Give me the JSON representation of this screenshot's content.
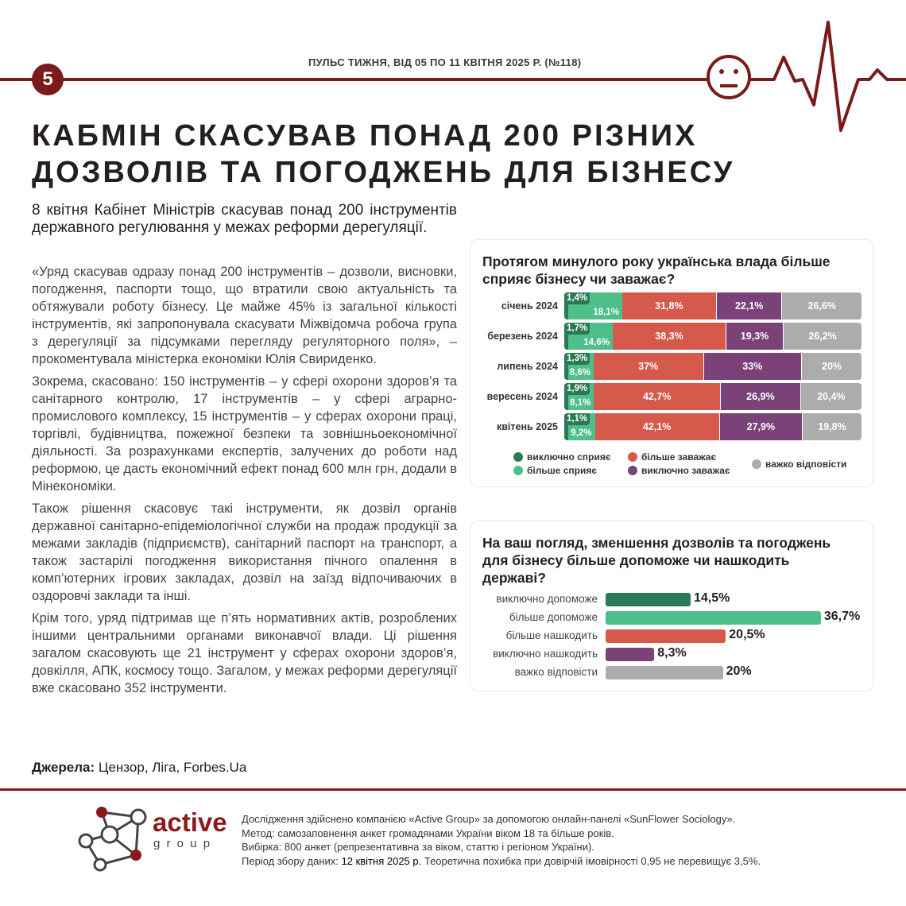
{
  "header": {
    "page_number": "5",
    "pulse_title": "ПУЛЬС ТИЖНЯ, ВІД 05 ПО 11 КВІТНЯ 2025 Р. (№118)",
    "mood_icon": "neutral-face-icon"
  },
  "article": {
    "title_line1": "КАБМІН СКАСУВАВ ПОНАД 200 РІЗНИХ",
    "title_line2": "ДОЗВОЛІВ ТА ПОГОДЖЕНЬ ДЛЯ БІЗНЕСУ",
    "lead": "8 квітня Кабінет Міністрів скасував понад 200 інструментів державного регулювання у межах реформи дерегуляції.",
    "paragraphs": [
      "«Уряд скасував одразу понад 200 інструментів – дозволи, висновки, погодження, паспорти тощо, що втратили свою актуальність та обтяжували роботу бізнесу. Це майже 45% із загальної кількості інструментів, які запропонувала скасувати Міжвідомча робоча група з дерегуляції за підсумками перегляду регуляторного поля», – прокоментувала міністерка економіки Юлія Свириденко.",
      "Зокрема, скасовано: 150 інструментів – у сфері охорони здоров’я та санітарного контролю, 17 інструментів – у сфері аграрно-промислового комплексу, 15 інструментів – у сферах охорони праці, торгівлі, будівництва, пожежної безпеки та зовнішньоекономічної діяльності. За розрахунками експертів, залучених до роботи над реформою, це дасть економічний ефект понад 600 млн грн, додали в Мінекономіки.",
      "Також рішення скасовує такі інструменти, як дозвіл органів державної санітарно-епідеміологічної служби на продаж продукції за межами закладів (підприємств), санітарний паспорт на транспорт, а також застарілі погодження використання пічного опалення в комп’ютерних ігрових закладах, дозвіл на заїзд відпочиваючих в оздоровчі заклади та інші.",
      "Крім того, уряд підтримав ще п’ять нормативних актів, розроблених іншими центральними органами виконавчої влади. Ці рішення загалом скасовують ще 21 інструмент у сферах охорони здоров’я, довкілля, АПК, космосу тощо. Загалом, у межах реформи дерегуляції вже скасовано 352 інструменти."
    ],
    "sources_label": "Джерела:",
    "sources": "Цензор, Ліга, Forbes.Ua"
  },
  "chart_data": [
    {
      "type": "bar",
      "stacked": true,
      "orientation": "horizontal",
      "title": "Протягом минулого року українська влада більше сприяє бізнесу чи заважає?",
      "categories": [
        "січень 2024",
        "березень 2024",
        "липень 2024",
        "вересень 2024",
        "квітень 2025"
      ],
      "series": [
        {
          "name": "виключно сприяє",
          "color": "#2b7a55",
          "values": [
            1.4,
            1.7,
            1.3,
            1.9,
            1.1
          ],
          "labels": [
            "1,4%",
            "1,7%",
            "1,3%",
            "1,9%",
            "1,1%"
          ]
        },
        {
          "name": "більше сприяє",
          "color": "#4fbf8a",
          "values": [
            18.1,
            14.6,
            8.6,
            8.1,
            9.2
          ],
          "labels": [
            "18,1%",
            "14,6%",
            "8,6%",
            "8,1%",
            "9,2%"
          ]
        },
        {
          "name": "більше заважає",
          "color": "#d65a4b",
          "values": [
            31.8,
            38.3,
            37,
            42.7,
            42.1
          ],
          "labels": [
            "31,8%",
            "38,3%",
            "37%",
            "42,7%",
            "42,1%"
          ]
        },
        {
          "name": "виключно заважає",
          "color": "#7a4279",
          "values": [
            22.1,
            19.3,
            33,
            26.9,
            27.9
          ],
          "labels": [
            "22,1%",
            "19,3%",
            "33%",
            "26,9%",
            "27,9%"
          ]
        },
        {
          "name": "важко відповісти",
          "color": "#acacac",
          "values": [
            26.6,
            26.2,
            20,
            20.4,
            19.8
          ],
          "labels": [
            "26,6%",
            "26,2%",
            "20%",
            "20,4%",
            "19,8%"
          ]
        }
      ],
      "legend": "bottom"
    },
    {
      "type": "bar",
      "orientation": "horizontal",
      "title": "На ваш погляд, зменшення дозволів та погоджень для бізнесу більше допоможе чи нашкодить державі?",
      "categories": [
        "виключно допоможе",
        "більше допоможе",
        "більше нашкодить",
        "виключно нашкодить",
        "важко відповісти"
      ],
      "values": [
        14.5,
        36.7,
        20.5,
        8.3,
        20
      ],
      "labels": [
        "14,5%",
        "36,7%",
        "20,5%",
        "8,3%",
        "20%"
      ],
      "colors": [
        "#2b7a55",
        "#4fbf8a",
        "#d65a4b",
        "#7a4279",
        "#acacac"
      ]
    }
  ],
  "footer": {
    "logo_text": "active",
    "logo_sub": "g r o u p",
    "lines": [
      "Дослідження здійснено компанією «Active Group» за допомогою онлайн-панелі «SunFlower Sociology».",
      "Метод: самозаповнення анкет громадянами України віком 18 та більше років.",
      "Вибірка: 800 анкет (репрезентативна за віком, статтю і регіоном України)."
    ],
    "period_label": "Період збору даних:",
    "period_value": "12 квітня 2025 р.",
    "period_rest": "Теоретична похибка при довірчій імовірності 0,95 не перевищує 3,5%."
  },
  "colors": {
    "brand": "#7a1a1a"
  }
}
